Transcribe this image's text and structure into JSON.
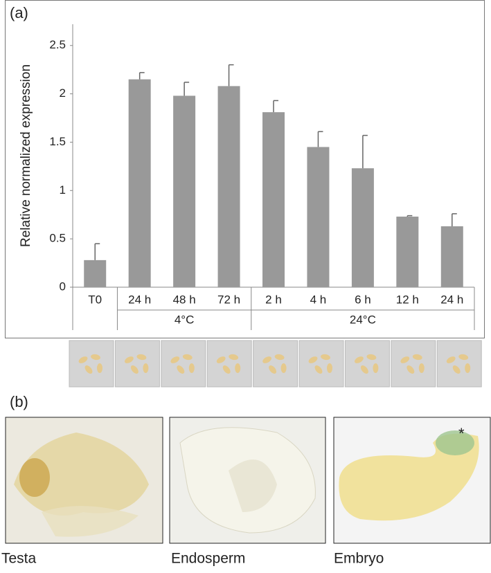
{
  "chart_data": {
    "type": "bar",
    "y_label": "Relative normalized expression",
    "categories": [
      "T0",
      "24 h",
      "48 h",
      "72 h",
      "2 h",
      "4 h",
      "6 h",
      "12 h",
      "24 h"
    ],
    "values": [
      0.28,
      2.15,
      1.98,
      2.08,
      1.81,
      1.45,
      1.23,
      0.73,
      0.63
    ],
    "errors": [
      0.17,
      0.07,
      0.14,
      0.22,
      0.12,
      0.16,
      0.34,
      0.01,
      0.13
    ],
    "groups": [
      {
        "label": "4°C",
        "categories": [
          1,
          2,
          3
        ]
      },
      {
        "label": "24°C",
        "categories": [
          4,
          5,
          6,
          7,
          8
        ]
      }
    ],
    "color": "#999999",
    "ylim": [
      0,
      2.72
    ],
    "yticks": [
      0,
      0.5,
      1,
      1.5,
      2,
      2.5
    ],
    "grid": false
  },
  "panel_labels": [
    "(a)",
    "(b)"
  ],
  "photo_labels": [
    "Testa",
    "Endosperm",
    "Embryo"
  ]
}
